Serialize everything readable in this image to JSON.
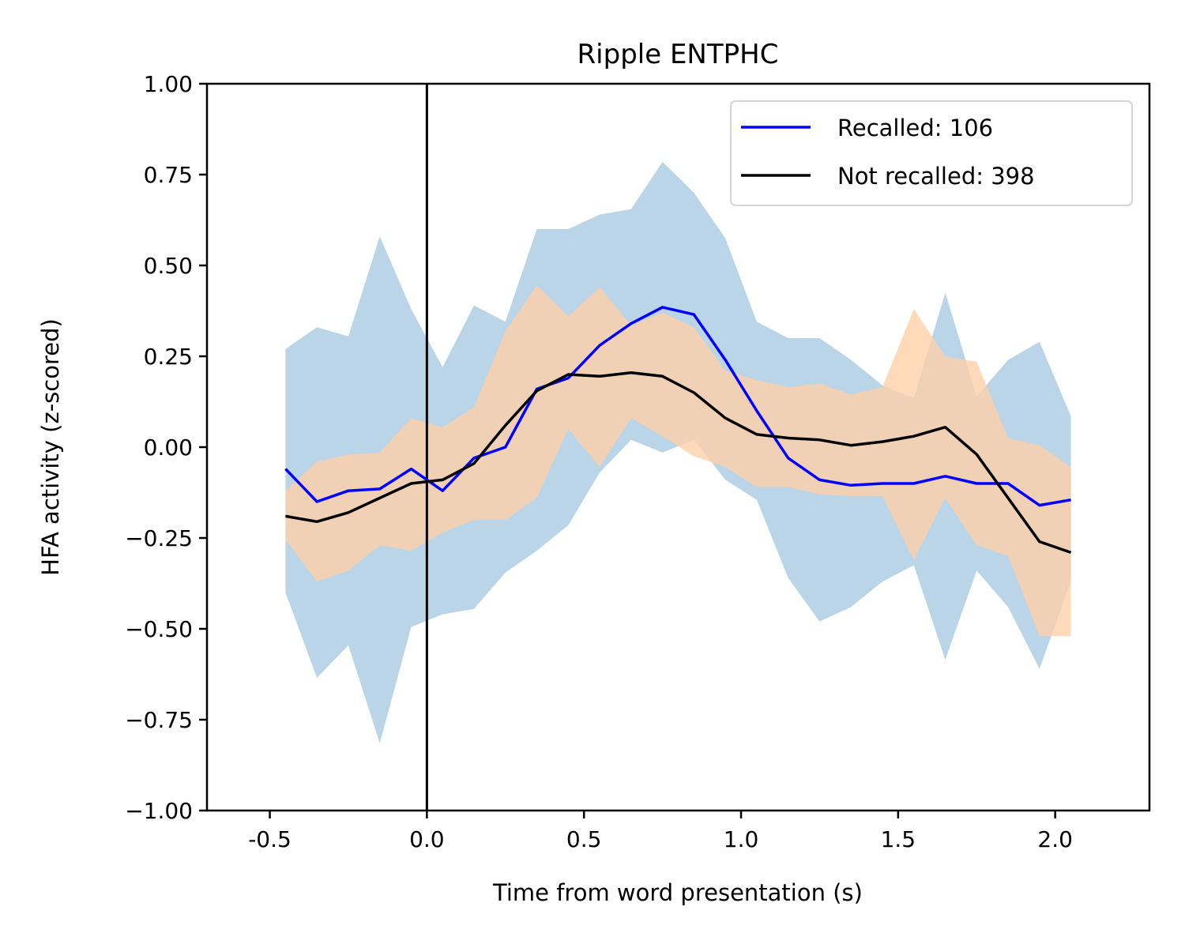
{
  "chart_data": {
    "type": "line",
    "title": "Ripple ENTPHC",
    "xlabel": "Time from word presentation (s)",
    "ylabel": "HFA activity (z-scored)",
    "xlim": [
      -0.7,
      2.3
    ],
    "ylim": [
      -1.0,
      1.0
    ],
    "xticks": [
      -0.5,
      0.0,
      0.5,
      1.0,
      1.5,
      2.0
    ],
    "xtick_labels": [
      "-0.5",
      "0.0",
      "0.5",
      "1.0",
      "1.5",
      "2.0"
    ],
    "yticks": [
      1.0,
      0.75,
      0.5,
      0.25,
      0.0,
      -0.25,
      -0.5,
      -0.75,
      -1.0
    ],
    "ytick_labels": [
      "1.00",
      "0.75",
      "0.50",
      "0.25",
      "0.00",
      "−0.25",
      "−0.50",
      "−0.75",
      "−1.00"
    ],
    "vline_x": 0.0,
    "grid": false,
    "legend_position": "top-right",
    "x": [
      -0.45,
      -0.35,
      -0.25,
      -0.15,
      -0.05,
      0.05,
      0.15,
      0.25,
      0.35,
      0.45,
      0.55,
      0.65,
      0.75,
      0.85,
      0.95,
      1.05,
      1.15,
      1.25,
      1.35,
      1.45,
      1.55,
      1.65,
      1.75,
      1.85,
      1.95,
      2.05
    ],
    "series": [
      {
        "name": "Recalled: 106",
        "color": "#0000ff",
        "band_color": "#a6c8e2",
        "values": [
          -0.06,
          -0.15,
          -0.12,
          -0.115,
          -0.06,
          -0.12,
          -0.03,
          0.0,
          0.16,
          0.19,
          0.28,
          0.34,
          0.385,
          0.365,
          0.24,
          0.1,
          -0.03,
          -0.09,
          -0.105,
          -0.1,
          -0.1,
          -0.08,
          -0.1,
          -0.1,
          -0.16,
          -0.145
        ],
        "upper": [
          0.27,
          0.33,
          0.305,
          0.58,
          0.38,
          0.22,
          0.39,
          0.345,
          0.6,
          0.6,
          0.64,
          0.655,
          0.785,
          0.7,
          0.575,
          0.345,
          0.3,
          0.3,
          0.24,
          0.17,
          0.135,
          0.425,
          0.14,
          0.24,
          0.29,
          0.085
        ],
        "lower": [
          -0.4,
          -0.635,
          -0.545,
          -0.815,
          -0.495,
          -0.46,
          -0.445,
          -0.345,
          -0.285,
          -0.215,
          -0.07,
          0.02,
          -0.015,
          0.02,
          -0.09,
          -0.145,
          -0.36,
          -0.48,
          -0.44,
          -0.37,
          -0.325,
          -0.585,
          -0.34,
          -0.44,
          -0.61,
          -0.37
        ]
      },
      {
        "name": "Not recalled: 398",
        "color": "#000000",
        "band_color": "#ffd0a6",
        "values": [
          -0.19,
          -0.205,
          -0.18,
          -0.14,
          -0.1,
          -0.09,
          -0.045,
          0.06,
          0.155,
          0.2,
          0.195,
          0.205,
          0.195,
          0.15,
          0.08,
          0.035,
          0.025,
          0.02,
          0.005,
          0.015,
          0.03,
          0.055,
          -0.02,
          -0.14,
          -0.26,
          -0.29
        ],
        "upper": [
          -0.12,
          -0.04,
          -0.02,
          -0.015,
          0.08,
          0.055,
          0.11,
          0.32,
          0.445,
          0.36,
          0.44,
          0.335,
          0.37,
          0.33,
          0.21,
          0.185,
          0.165,
          0.175,
          0.145,
          0.165,
          0.38,
          0.25,
          0.235,
          0.025,
          0.005,
          -0.055
        ],
        "lower": [
          -0.255,
          -0.37,
          -0.34,
          -0.27,
          -0.285,
          -0.235,
          -0.2,
          -0.2,
          -0.14,
          0.05,
          -0.055,
          0.08,
          0.03,
          -0.025,
          -0.055,
          -0.11,
          -0.11,
          -0.13,
          -0.135,
          -0.135,
          -0.31,
          -0.14,
          -0.27,
          -0.3,
          -0.52,
          -0.52
        ]
      }
    ]
  }
}
